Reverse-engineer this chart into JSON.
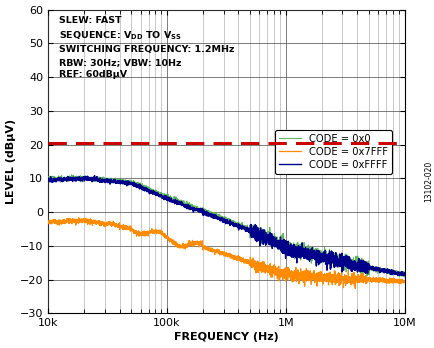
{
  "xlabel": "FREQUENCY (Hz)",
  "ylabel": "LEVEL (dBμV)",
  "xlim_log": [
    10000,
    10000000
  ],
  "ylim": [
    -30,
    60
  ],
  "yticks": [
    -30,
    -20,
    -10,
    0,
    10,
    20,
    30,
    40,
    50,
    60
  ],
  "ref_line_y": 20.5,
  "ref_line_color": "#cc0000",
  "legend_entries": [
    "CODE = 0xFFFF",
    "CODE = 0x7FFF",
    "CODE = 0x0"
  ],
  "line_colors": [
    "#00008B",
    "#FF8C00",
    "#4CAF50"
  ],
  "watermark": "13102-020",
  "background_color": "#ffffff",
  "grid_color": "#444444",
  "annotation": "SLEW: FAST\nSEQUENCE: V$_\\mathregular{DD}$ TO V$_\\mathregular{SS}$\nSWITCHING FREQUENCY: 1.2MHz\nRBW: 30Hz; VBW: 10Hz\nREF: 60dBμV"
}
